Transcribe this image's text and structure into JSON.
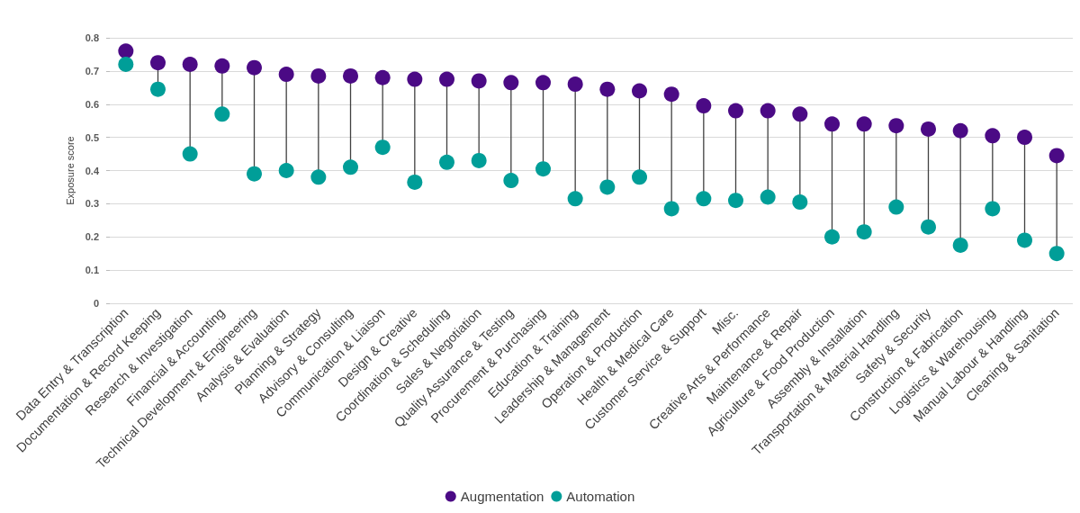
{
  "chart_data": {
    "type": "scatter",
    "ylabel": "Exposure score",
    "categories": [
      "Data Entry & Transcription",
      "Documentation & Record Keeping",
      "Research & Investigation",
      "Financial & Accounting",
      "Technical Development & Engineering",
      "Analysis & Evaluation",
      "Planning & Strategy",
      "Advisory & Consulting",
      "Communication & Liaison",
      "Design & Creative",
      "Coordination & Scheduling",
      "Sales & Negotiation",
      "Quality Assurance & Testing",
      "Procurement & Purchasing",
      "Education & Training",
      "Leadership & Management",
      "Operation & Production",
      "Health & Medical Care",
      "Customer Service & Support",
      "Misc.",
      "Creative Arts & Performance",
      "Maintenance & Repair",
      "Agriculture & Food Production",
      "Assembly & Installation",
      "Transportation & Material Handling",
      "Safety & Security",
      "Construction & Fabrication",
      "Logistics & Warehousing",
      "Manual Labour & Handling",
      "Cleaning & Sanitation"
    ],
    "series": [
      {
        "name": "Augmentation",
        "color": "#4b0a85",
        "values": [
          0.76,
          0.725,
          0.72,
          0.715,
          0.71,
          0.69,
          0.685,
          0.685,
          0.68,
          0.675,
          0.675,
          0.67,
          0.665,
          0.665,
          0.66,
          0.645,
          0.64,
          0.63,
          0.595,
          0.58,
          0.58,
          0.57,
          0.54,
          0.54,
          0.535,
          0.525,
          0.52,
          0.505,
          0.5,
          0.445
        ]
      },
      {
        "name": "Automation",
        "color": "#009e98",
        "values": [
          0.72,
          0.645,
          0.45,
          0.57,
          0.39,
          0.4,
          0.38,
          0.41,
          0.47,
          0.365,
          0.425,
          0.43,
          0.37,
          0.405,
          0.315,
          0.35,
          0.38,
          0.285,
          0.315,
          0.31,
          0.32,
          0.305,
          0.2,
          0.215,
          0.29,
          0.23,
          0.175,
          0.285,
          0.19,
          0.15
        ]
      }
    ],
    "ylim": [
      0,
      0.8
    ],
    "yticks": [
      0,
      0.1,
      0.2,
      0.3,
      0.4,
      0.5,
      0.6,
      0.7,
      0.8
    ],
    "grid": "y",
    "legend": "bottom",
    "marker": "circle"
  }
}
